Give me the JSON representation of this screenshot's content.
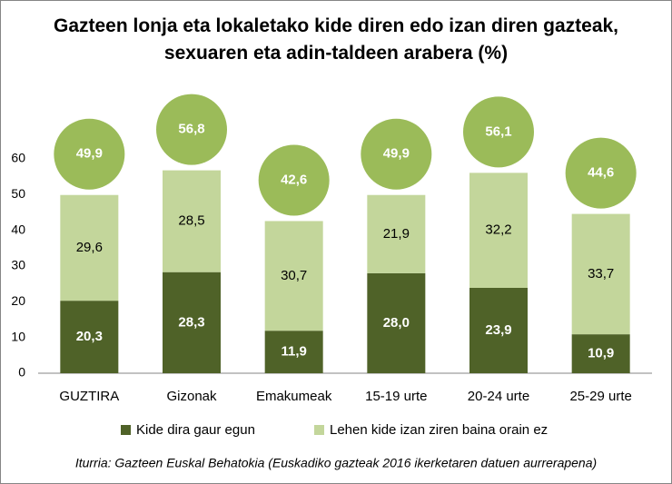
{
  "chart_data": {
    "type": "stacked-bar",
    "title": "Gazteen lonja eta lokaletako kide diren edo izan diren gazteak, sexuaren eta adin-taldeen arabera  (%)",
    "categories": [
      "GUZTIRA",
      "Gizonak",
      "Emakumeak",
      "15-19 urte",
      "20-24 urte",
      "25-29 urte"
    ],
    "series": [
      {
        "name": "Kide dira gaur egun",
        "color": "#4f6228",
        "values": [
          20.3,
          28.3,
          11.9,
          28.0,
          23.9,
          10.9
        ],
        "value_labels": [
          "20,3",
          "28,3",
          "11,9",
          "28,0",
          "23,9",
          "10,9"
        ]
      },
      {
        "name": "Lehen kide izan ziren baina orain ez",
        "color": "#c3d69b",
        "values": [
          29.6,
          28.5,
          30.7,
          21.9,
          32.2,
          33.7
        ],
        "value_labels": [
          "29,6",
          "28,5",
          "30,7",
          "21,9",
          "32,2",
          "33,7"
        ]
      }
    ],
    "totals": {
      "color": "#9bbb59",
      "values": [
        49.9,
        56.8,
        42.6,
        49.9,
        56.1,
        44.6
      ],
      "value_labels": [
        "49,9",
        "56,8",
        "42,6",
        "49,9",
        "56,1",
        "44,6"
      ]
    },
    "ylim": [
      0,
      60
    ],
    "yticks": [
      0,
      10,
      20,
      30,
      40,
      50,
      60
    ],
    "source": "Iturria: Gazteen Euskal Behatokia (Euskadiko gazteak 2016 ikerketaren datuen aurrerapena)"
  }
}
